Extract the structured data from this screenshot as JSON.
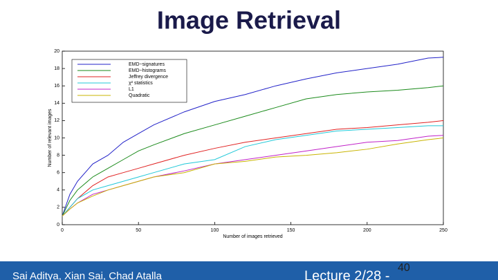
{
  "slide": {
    "title": "Image Retrieval",
    "footer_left": "Sai Aditya, Xian Sai, Chad Atalla",
    "footer_center": "Lecture 2/28 -",
    "page_number": "40"
  },
  "chart_data": {
    "type": "line",
    "x_label": "Number of images retrieved",
    "y_label": "Number of relevant images",
    "x": [
      0,
      5,
      10,
      20,
      30,
      40,
      50,
      60,
      80,
      100,
      120,
      140,
      160,
      180,
      200,
      220,
      240,
      250
    ],
    "series": [
      {
        "name": "EMD−signatures",
        "color": "#2020c8",
        "values": [
          1,
          3.5,
          5,
          7,
          8,
          9.5,
          10.5,
          11.5,
          13,
          14.2,
          15,
          16,
          16.8,
          17.5,
          18,
          18.5,
          19.2,
          19.3
        ]
      },
      {
        "name": "EMD−histograms",
        "color": "#1a8a1a",
        "values": [
          1,
          2.8,
          4,
          5.5,
          6.5,
          7.5,
          8.5,
          9.2,
          10.5,
          11.5,
          12.5,
          13.5,
          14.5,
          15,
          15.3,
          15.5,
          15.8,
          16
        ]
      },
      {
        "name": "Jeffrey divergence",
        "color": "#e02020",
        "values": [
          1,
          2,
          3,
          4.5,
          5.5,
          6,
          6.5,
          7,
          8,
          8.8,
          9.5,
          10,
          10.5,
          11,
          11.2,
          11.5,
          11.8,
          12
        ]
      },
      {
        "name": "χ² statistics",
        "color": "#20c8d8",
        "values": [
          1,
          2,
          3,
          4,
          4.5,
          5,
          5.5,
          6,
          7,
          7.5,
          9,
          9.8,
          10.3,
          10.8,
          11,
          11.2,
          11.4,
          11.4
        ]
      },
      {
        "name": "L1",
        "color": "#c020c8",
        "values": [
          1,
          1.8,
          2.5,
          3.5,
          4,
          4.5,
          5,
          5.5,
          6.2,
          7,
          7.5,
          8,
          8.5,
          9,
          9.5,
          9.7,
          10.2,
          10.3
        ]
      },
      {
        "name": "Quadratic",
        "color": "#c8b400",
        "values": [
          1,
          1.8,
          2.5,
          3.3,
          4,
          4.5,
          5,
          5.5,
          6,
          7,
          7.3,
          7.8,
          8,
          8.3,
          8.7,
          9.3,
          9.8,
          10
        ]
      }
    ],
    "xlim": [
      0,
      250
    ],
    "xticks": [
      0,
      50,
      100,
      150,
      200,
      250
    ],
    "ylim": [
      0,
      20
    ],
    "yticks": [
      0,
      2,
      4,
      6,
      8,
      10,
      12,
      14,
      16,
      18,
      20
    ],
    "legend": "upper-left"
  }
}
